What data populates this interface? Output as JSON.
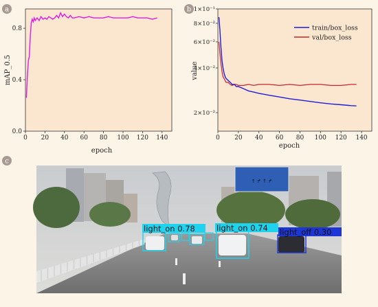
{
  "colors": {
    "background": "#fdf4e8",
    "plot_bg": "#fbe7cf",
    "map_line": "#e21be0",
    "train_line": "#1c1cd9",
    "val_line": "#c8242a",
    "tag_bg": "#a89a93",
    "det_box": "#1fd3ee"
  },
  "panels": {
    "a": {
      "tag": "a"
    },
    "b": {
      "tag": "b"
    },
    "c": {
      "tag": "c"
    }
  },
  "chart_data": [
    {
      "type": "line",
      "panel": "a",
      "title": "",
      "xlabel": "epoch",
      "ylabel": "mAP_0.5",
      "xlim": [
        0,
        150
      ],
      "ylim": [
        0.0,
        0.95
      ],
      "xticks": [
        0,
        20,
        40,
        60,
        80,
        100,
        120,
        140
      ],
      "yticks": [
        0.0,
        0.4,
        0.8
      ],
      "ytick_labels": [
        "0.0",
        "0.4",
        "0.8"
      ],
      "grid": false,
      "series": [
        {
          "x": [
            1,
            2,
            3,
            4,
            5,
            6,
            7,
            8,
            9,
            10,
            12,
            14,
            16,
            18,
            20,
            22,
            24,
            26,
            28,
            30,
            32,
            34,
            36,
            38,
            40,
            42,
            44,
            46,
            48,
            50,
            55,
            60,
            65,
            70,
            75,
            80,
            85,
            90,
            95,
            100,
            105,
            110,
            115,
            120,
            125,
            130,
            135
          ],
          "values": [
            0.26,
            0.42,
            0.55,
            0.58,
            0.74,
            0.84,
            0.87,
            0.85,
            0.88,
            0.86,
            0.88,
            0.86,
            0.89,
            0.87,
            0.88,
            0.87,
            0.89,
            0.88,
            0.87,
            0.88,
            0.9,
            0.88,
            0.92,
            0.89,
            0.91,
            0.89,
            0.88,
            0.9,
            0.88,
            0.88,
            0.89,
            0.88,
            0.89,
            0.88,
            0.88,
            0.88,
            0.89,
            0.88,
            0.88,
            0.88,
            0.88,
            0.89,
            0.88,
            0.88,
            0.88,
            0.87,
            0.88
          ]
        }
      ]
    },
    {
      "type": "line",
      "panel": "b",
      "title": "",
      "xlabel": "epoch",
      "ylabel": "value",
      "yscale": "log",
      "xlim": [
        0,
        150
      ],
      "ylim": [
        0.015,
        0.1
      ],
      "xticks": [
        0,
        20,
        40,
        60,
        80,
        100,
        120,
        140
      ],
      "yticks": [
        0.02,
        0.04,
        0.06,
        0.08,
        0.1
      ],
      "ytick_labels": [
        "2×10⁻²",
        "4×10⁻²",
        "6×10⁻²",
        "8×10⁻²",
        "1×10⁻¹"
      ],
      "grid": false,
      "legend": "top-right",
      "series": [
        {
          "name": "train/box_loss",
          "x": [
            1,
            2,
            3,
            4,
            5,
            6,
            7,
            8,
            10,
            12,
            14,
            16,
            18,
            20,
            25,
            30,
            35,
            40,
            50,
            60,
            70,
            80,
            90,
            100,
            110,
            120,
            130,
            135
          ],
          "values": [
            0.088,
            0.072,
            0.055,
            0.045,
            0.04,
            0.037,
            0.035,
            0.034,
            0.033,
            0.032,
            0.031,
            0.031,
            0.03,
            0.03,
            0.029,
            0.028,
            0.0275,
            0.027,
            0.0262,
            0.0255,
            0.0248,
            0.0243,
            0.0238,
            0.0233,
            0.0229,
            0.0226,
            0.0223,
            0.0222
          ]
        },
        {
          "name": "val/box_loss",
          "x": [
            1,
            2,
            3,
            4,
            5,
            6,
            7,
            8,
            10,
            12,
            14,
            16,
            18,
            20,
            25,
            30,
            35,
            40,
            50,
            60,
            70,
            80,
            90,
            100,
            110,
            120,
            130,
            135
          ],
          "values": [
            0.06,
            0.05,
            0.043,
            0.038,
            0.035,
            0.034,
            0.033,
            0.032,
            0.032,
            0.031,
            0.0305,
            0.031,
            0.031,
            0.0305,
            0.0305,
            0.031,
            0.0305,
            0.031,
            0.031,
            0.0305,
            0.031,
            0.0305,
            0.031,
            0.031,
            0.0305,
            0.0305,
            0.031,
            0.031
          ]
        }
      ]
    }
  ],
  "detections": [
    {
      "label": "light_on 0.78"
    },
    {
      "label": "light_on 0.74"
    },
    {
      "label": "light_off 0.30"
    }
  ]
}
